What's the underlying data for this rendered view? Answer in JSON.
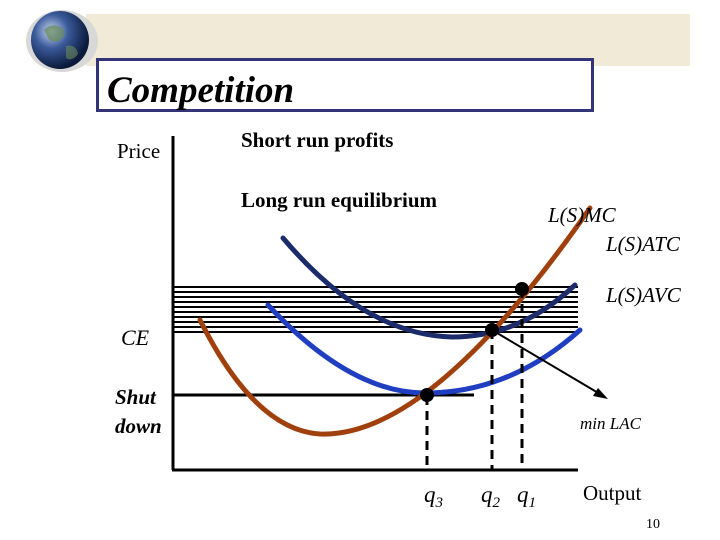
{
  "slide": {
    "title": "Competition",
    "page_number": "10"
  },
  "diagram": {
    "y_axis_label": "Price",
    "x_axis_label": "Output",
    "headings": [
      "Short run profits",
      "Long run equilibrium"
    ],
    "curves": {
      "mc": "L(S)MC",
      "atc": "L(S)ATC",
      "avc": "L(S)AVC"
    },
    "levels": {
      "ce": "CE",
      "shutdown_line1": "Shut",
      "shutdown_line2": "down"
    },
    "quantities": {
      "q3_letter": "q",
      "q3_sub": "3",
      "q2_letter": "q",
      "q2_sub": "2",
      "q1_letter": "q",
      "q1_sub": "1"
    },
    "annotation": "min LAC",
    "colors": {
      "mc": "#a0400c",
      "atc": "#1c2b6a",
      "avc": "#1f3fc0",
      "frame": "#333377",
      "banner": "#f0ead6"
    }
  }
}
